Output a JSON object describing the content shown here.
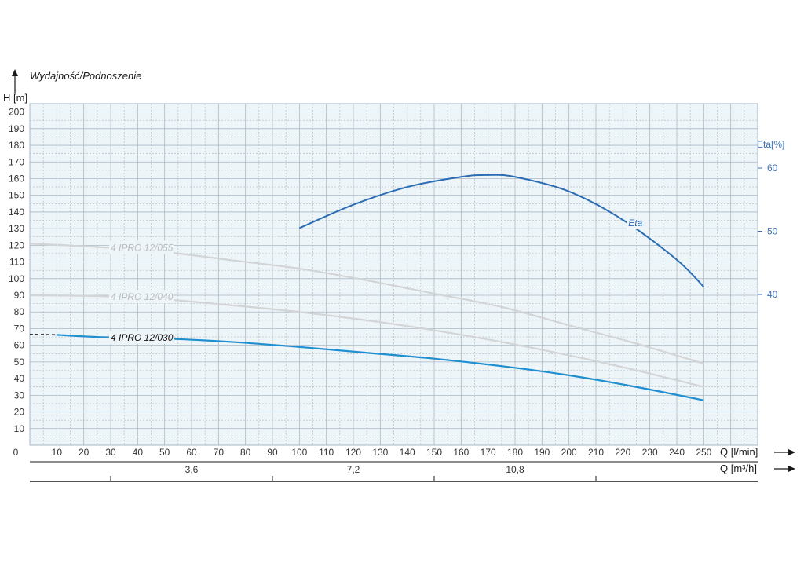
{
  "chart_data": {
    "type": "line",
    "title": "Wydajność/Podnoszenie",
    "ylabel": "H [m]",
    "y2label": "Eta[%]",
    "xlabel": "Q  [l/min]",
    "x2label": "Q  [m³/h]",
    "xlim": [
      0,
      270
    ],
    "ylim": [
      0,
      205
    ],
    "y2lim": [
      0,
      70
    ],
    "x_ticks": [
      0,
      10,
      20,
      30,
      40,
      50,
      60,
      70,
      80,
      90,
      100,
      110,
      120,
      130,
      140,
      150,
      160,
      170,
      180,
      190,
      200,
      210,
      220,
      230,
      240,
      250
    ],
    "y_ticks": [
      10,
      20,
      30,
      40,
      50,
      60,
      70,
      80,
      90,
      100,
      110,
      120,
      130,
      140,
      150,
      160,
      170,
      180,
      190,
      200
    ],
    "y2_ticks": [
      40,
      50,
      60
    ],
    "x2_ticks": [
      {
        "value": 3.6,
        "label": "3,6"
      },
      {
        "value": 7.2,
        "label": "7,2"
      },
      {
        "value": 10.8,
        "label": "10,8"
      }
    ],
    "x2_minor_ticks": [
      1.8,
      5.4,
      9.0,
      12.6
    ],
    "grid": true,
    "series": [
      {
        "name": "4 IPRO 12/030",
        "axis": "left",
        "color": "#1f8fd0",
        "style": "solid",
        "lead_in": [
          [
            0,
            66.5
          ],
          [
            10,
            66.3
          ]
        ],
        "points": [
          [
            10,
            66.3
          ],
          [
            25,
            65
          ],
          [
            50,
            64
          ],
          [
            75,
            62
          ],
          [
            100,
            59
          ],
          [
            125,
            55.5
          ],
          [
            150,
            52
          ],
          [
            175,
            47.5
          ],
          [
            200,
            42
          ],
          [
            225,
            35
          ],
          [
            250,
            27
          ]
        ]
      },
      {
        "name": "4 IPRO 12/040",
        "axis": "left",
        "color": "#d2d4d6",
        "style": "solid",
        "points": [
          [
            0,
            90
          ],
          [
            25,
            89.5
          ],
          [
            50,
            87.5
          ],
          [
            75,
            84
          ],
          [
            100,
            80
          ],
          [
            125,
            75
          ],
          [
            150,
            69
          ],
          [
            175,
            62
          ],
          [
            200,
            54
          ],
          [
            225,
            45
          ],
          [
            250,
            35
          ]
        ]
      },
      {
        "name": "4 IPRO 12/055",
        "axis": "left",
        "color": "#d2d4d6",
        "style": "solid",
        "points": [
          [
            0,
            121
          ],
          [
            25,
            119
          ],
          [
            50,
            116
          ],
          [
            75,
            111
          ],
          [
            100,
            106
          ],
          [
            125,
            99
          ],
          [
            150,
            91
          ],
          [
            175,
            83
          ],
          [
            200,
            72
          ],
          [
            225,
            61
          ],
          [
            250,
            49
          ]
        ]
      },
      {
        "name": "Eta",
        "axis": "right",
        "color": "#2a6db4",
        "style": "solid",
        "points": [
          [
            100,
            50.5
          ],
          [
            120,
            54.2
          ],
          [
            140,
            57
          ],
          [
            160,
            58.6
          ],
          [
            170,
            58.9
          ],
          [
            180,
            58.6
          ],
          [
            200,
            56.3
          ],
          [
            220,
            51.8
          ],
          [
            240,
            45.5
          ],
          [
            250,
            41.2
          ]
        ]
      }
    ]
  },
  "axis_arrows": {
    "y_arrow": "arrow-up-icon",
    "x_arrow": "arrow-right-icon"
  },
  "colors": {
    "grid_line": "#a7b9c4",
    "plot_bg": "#eef5f9",
    "eta_axis": "#3a72b8",
    "axis_text": "#333333"
  }
}
